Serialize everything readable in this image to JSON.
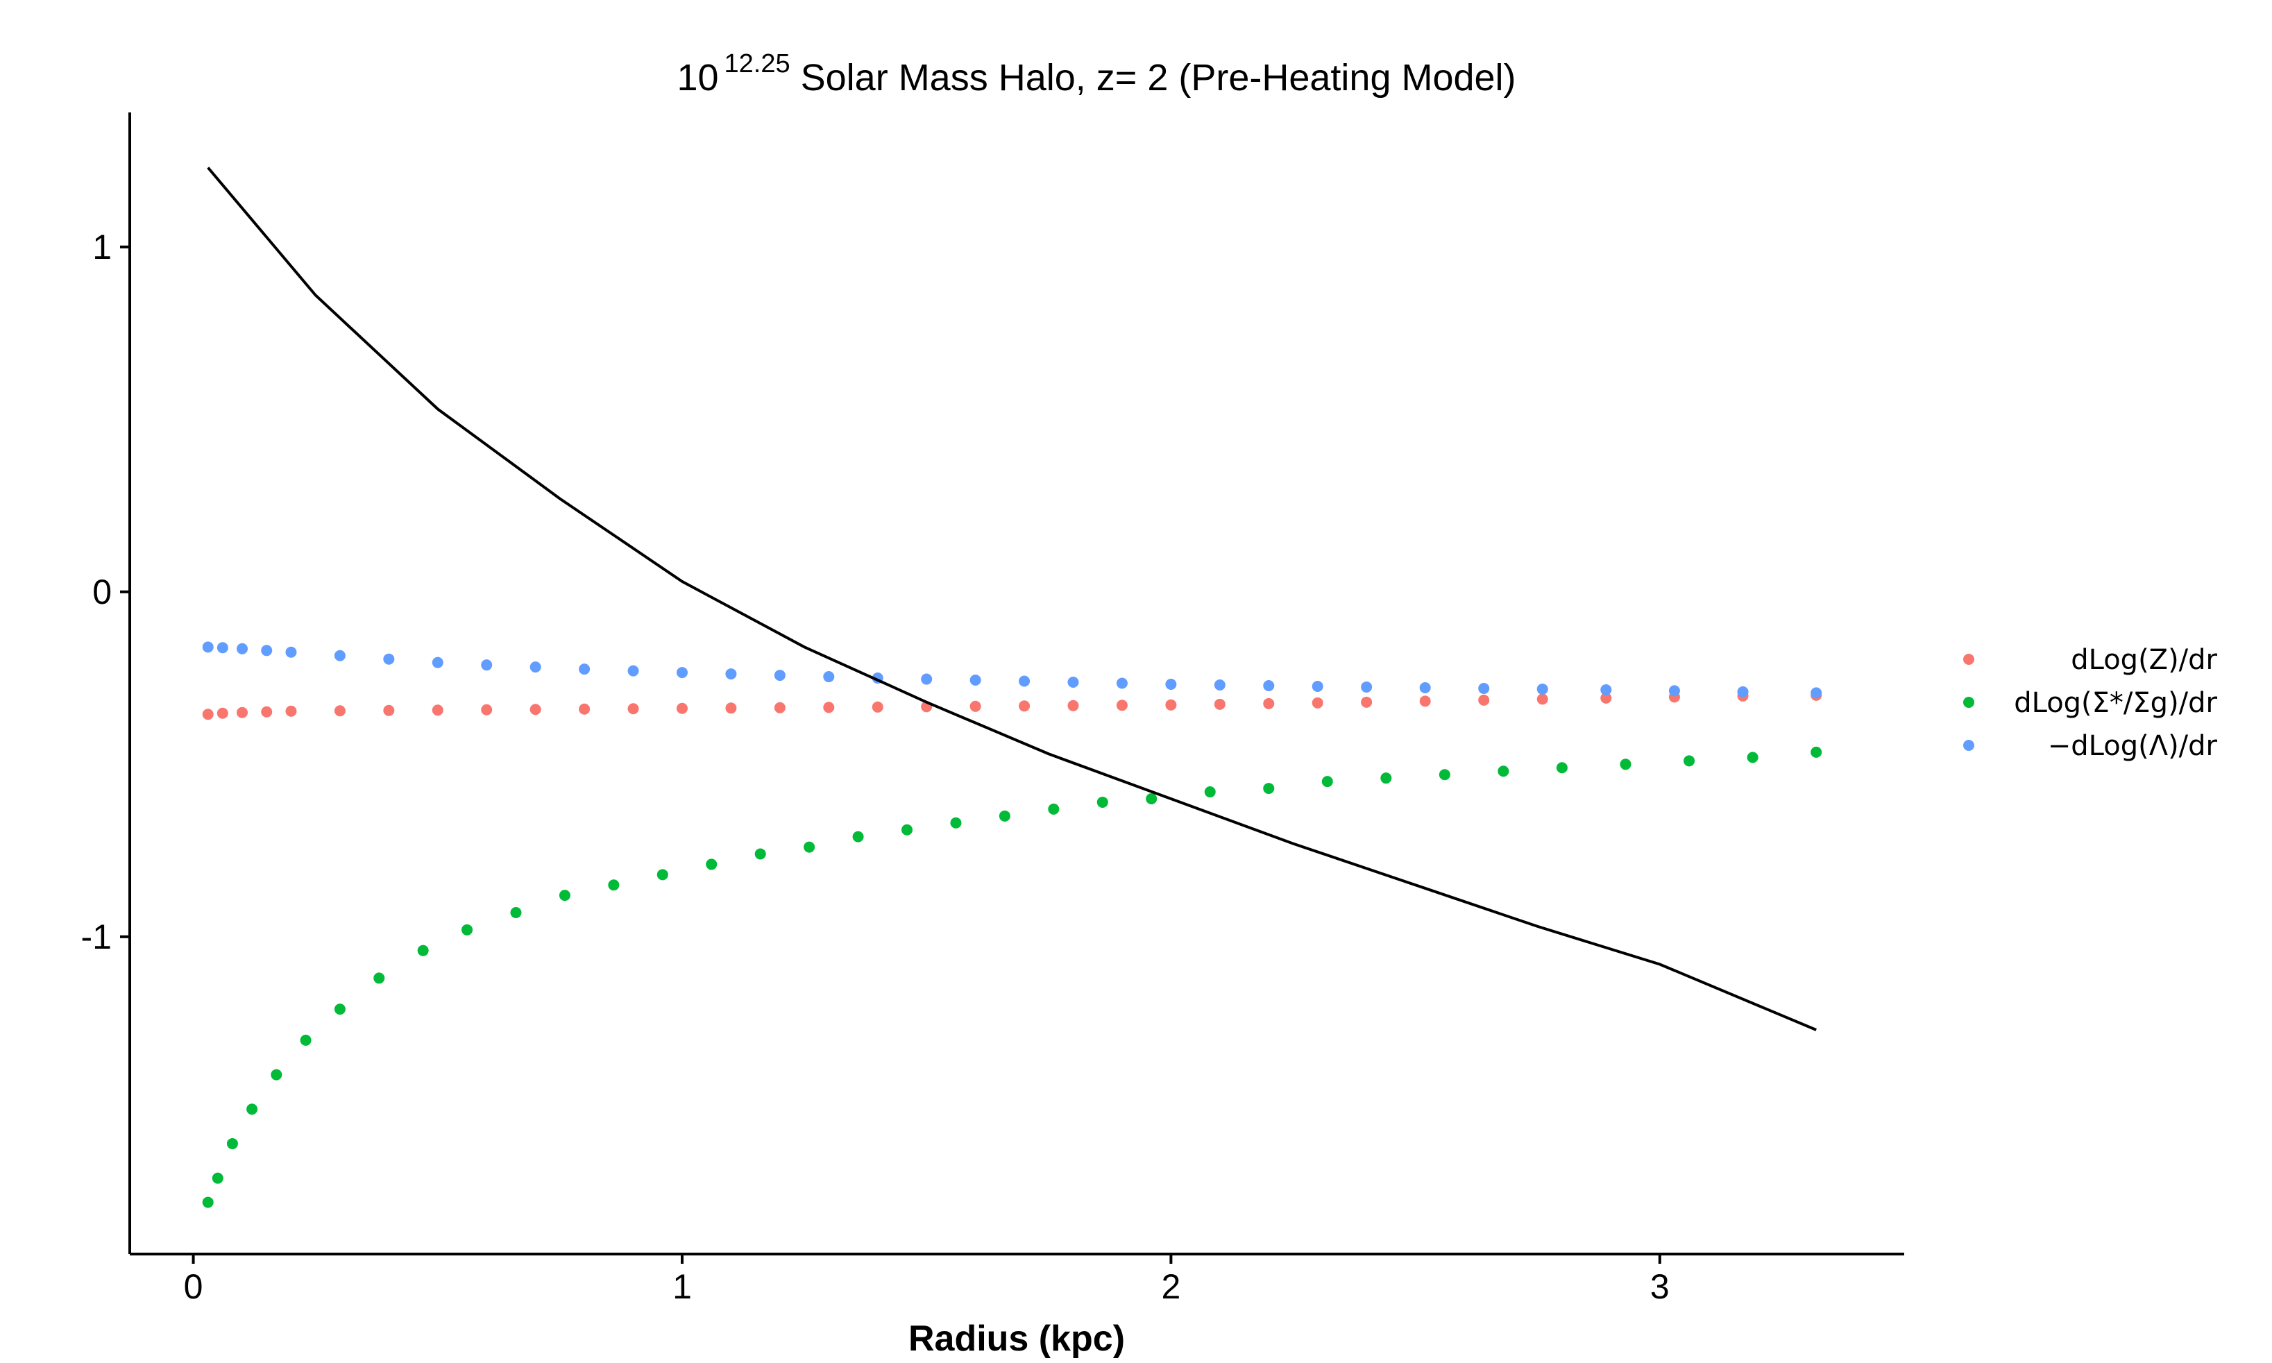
{
  "chart_data": {
    "type": "scatter",
    "title": {
      "base": "10",
      "exponent": "12.25",
      "rest": " Solar Mass Halo, z= 2 (Pre-Heating Model)"
    },
    "xlabel": "Radius (kpc)",
    "ylabel": "",
    "xlim": [
      -0.13,
      3.5
    ],
    "ylim": [
      -1.92,
      1.39
    ],
    "x_ticks": [
      0,
      1,
      2,
      3
    ],
    "y_ticks": [
      1,
      0,
      -1
    ],
    "x_tick_labels": [
      "0",
      "1",
      "2",
      "3"
    ],
    "y_tick_labels": [
      "1",
      "0",
      "-1"
    ],
    "grid": false,
    "legend_position": "right",
    "legend_entries": [
      {
        "label": "dLog(Z)/dr",
        "color": "#F8766D"
      },
      {
        "label": "dLog(Σ*/Σg)/dr",
        "color": "#00BA38"
      },
      {
        "label": "−dLog(Λ)/dr",
        "color": "#619CFF"
      }
    ],
    "line_series": {
      "name": "",
      "color": "#000000",
      "x": [
        0.03,
        0.25,
        0.5,
        0.75,
        1.0,
        1.25,
        1.5,
        1.75,
        2.0,
        2.25,
        2.5,
        2.75,
        3.0,
        3.32
      ],
      "y": [
        1.23,
        0.86,
        0.53,
        0.27,
        0.03,
        -0.16,
        -0.32,
        -0.47,
        -0.6,
        -0.73,
        -0.85,
        -0.97,
        -1.08,
        -1.27
      ]
    },
    "series": [
      {
        "name": "dLog(Z)/dr",
        "color": "#F8766D",
        "x": [
          0.03,
          0.06,
          0.1,
          0.15,
          0.2,
          0.3,
          0.4,
          0.5,
          0.6,
          0.7,
          0.8,
          0.9,
          1.0,
          1.1,
          1.2,
          1.3,
          1.4,
          1.5,
          1.6,
          1.7,
          1.8,
          1.9,
          2.0,
          2.1,
          2.2,
          2.3,
          2.4,
          2.52,
          2.64,
          2.76,
          2.89,
          3.03,
          3.17,
          3.32
        ],
        "y": [
          -0.355,
          -0.352,
          -0.35,
          -0.348,
          -0.346,
          -0.345,
          -0.344,
          -0.343,
          -0.342,
          -0.341,
          -0.34,
          -0.339,
          -0.338,
          -0.337,
          -0.336,
          -0.335,
          -0.334,
          -0.333,
          -0.332,
          -0.331,
          -0.33,
          -0.329,
          -0.328,
          -0.326,
          -0.324,
          -0.322,
          -0.32,
          -0.317,
          -0.314,
          -0.311,
          -0.308,
          -0.305,
          -0.302,
          -0.3
        ]
      },
      {
        "name": "dLog(Σ*/Σg)/dr",
        "color": "#00BA38",
        "x": [
          0.03,
          0.05,
          0.08,
          0.12,
          0.17,
          0.23,
          0.3,
          0.38,
          0.47,
          0.56,
          0.66,
          0.76,
          0.86,
          0.96,
          1.06,
          1.16,
          1.26,
          1.36,
          1.46,
          1.56,
          1.66,
          1.76,
          1.86,
          1.96,
          2.08,
          2.2,
          2.32,
          2.44,
          2.56,
          2.68,
          2.8,
          2.93,
          3.06,
          3.19,
          3.32
        ],
        "y": [
          -1.77,
          -1.7,
          -1.6,
          -1.5,
          -1.4,
          -1.3,
          -1.21,
          -1.12,
          -1.04,
          -0.98,
          -0.93,
          -0.88,
          -0.85,
          -0.82,
          -0.79,
          -0.76,
          -0.74,
          -0.71,
          -0.69,
          -0.67,
          -0.65,
          -0.63,
          -0.61,
          -0.6,
          -0.58,
          -0.57,
          -0.55,
          -0.54,
          -0.53,
          -0.52,
          -0.51,
          -0.5,
          -0.49,
          -0.48,
          -0.465
        ]
      },
      {
        "name": "−dLog(Λ)/dr",
        "color": "#619CFF",
        "x": [
          0.03,
          0.06,
          0.1,
          0.15,
          0.2,
          0.3,
          0.4,
          0.5,
          0.6,
          0.7,
          0.8,
          0.9,
          1.0,
          1.1,
          1.2,
          1.3,
          1.4,
          1.5,
          1.6,
          1.7,
          1.8,
          1.9,
          2.0,
          2.1,
          2.2,
          2.3,
          2.4,
          2.52,
          2.64,
          2.76,
          2.89,
          3.03,
          3.17,
          3.32
        ],
        "y": [
          -0.16,
          -0.162,
          -0.165,
          -0.17,
          -0.175,
          -0.185,
          -0.195,
          -0.205,
          -0.212,
          -0.218,
          -0.224,
          -0.229,
          -0.234,
          -0.238,
          -0.242,
          -0.246,
          -0.25,
          -0.253,
          -0.256,
          -0.259,
          -0.262,
          -0.265,
          -0.268,
          -0.27,
          -0.272,
          -0.274,
          -0.276,
          -0.278,
          -0.28,
          -0.282,
          -0.284,
          -0.287,
          -0.29,
          -0.293
        ]
      }
    ]
  }
}
